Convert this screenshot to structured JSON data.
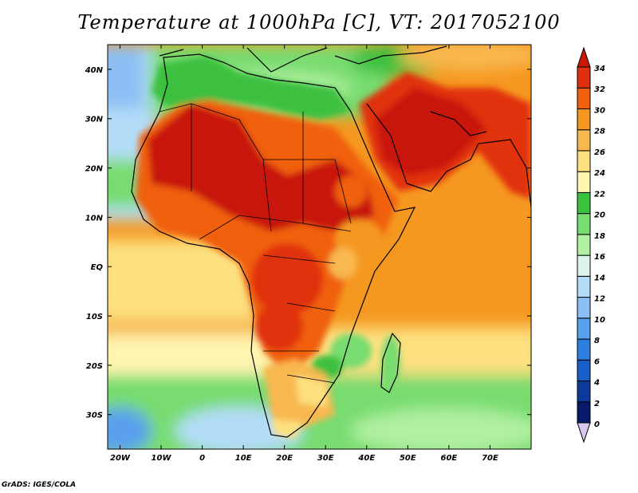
{
  "title": "Temperature at 1000hPa [C], VT: 2017052100",
  "footer": "GrADS: IGES/COLA",
  "map": {
    "lon_range": [
      -23,
      80
    ],
    "lat_range": [
      -37,
      45
    ],
    "x_ticks": [
      {
        "lon": -20,
        "label": "20W"
      },
      {
        "lon": -10,
        "label": "10W"
      },
      {
        "lon": 0,
        "label": "0"
      },
      {
        "lon": 10,
        "label": "10E"
      },
      {
        "lon": 20,
        "label": "20E"
      },
      {
        "lon": 30,
        "label": "30E"
      },
      {
        "lon": 40,
        "label": "40E"
      },
      {
        "lon": 50,
        "label": "50E"
      },
      {
        "lon": 60,
        "label": "60E"
      },
      {
        "lon": 70,
        "label": "70E"
      }
    ],
    "y_ticks": [
      {
        "lat": 40,
        "label": "40N"
      },
      {
        "lat": 30,
        "label": "30N"
      },
      {
        "lat": 20,
        "label": "20N"
      },
      {
        "lat": 10,
        "label": "10N"
      },
      {
        "lat": 0,
        "label": "EQ"
      },
      {
        "lat": -10,
        "label": "10S"
      },
      {
        "lat": -20,
        "label": "20S"
      },
      {
        "lat": -30,
        "label": "30S"
      }
    ]
  },
  "colorbar": {
    "levels": [
      "0",
      "2",
      "4",
      "6",
      "8",
      "10",
      "12",
      "14",
      "16",
      "18",
      "20",
      "22",
      "24",
      "26",
      "28",
      "30",
      "32",
      "34"
    ],
    "colors": [
      "#d8c8f0",
      "#0a1a6a",
      "#0c3a9a",
      "#1a5ec8",
      "#2e7ee0",
      "#5aa0ec",
      "#8cc0f4",
      "#b4dcf8",
      "#dcf4ec",
      "#b0f0a0",
      "#78dc70",
      "#3cc040",
      "#fff5b0",
      "#fde080",
      "#f8b850",
      "#f59820",
      "#f06010",
      "#e03010",
      "#c81808"
    ]
  }
}
